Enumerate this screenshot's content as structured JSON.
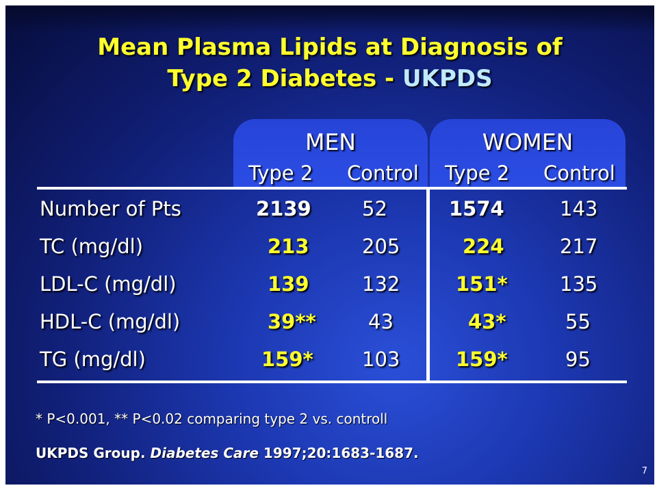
{
  "title": {
    "line1": "Mean Plasma Lipids at Diagnosis of",
    "line2_prefix": "Type 2 Diabetes - ",
    "line2_accent": "UKPDS"
  },
  "colors": {
    "yellow": "#ffff2e",
    "accent": "#bfeaff",
    "tab": "#2b4de4"
  },
  "groups": {
    "men": {
      "label": "MEN",
      "col1": "Type 2",
      "col2": "Control"
    },
    "women": {
      "label": "WOMEN",
      "col1": "Type 2",
      "col2": "Control"
    }
  },
  "rows": [
    {
      "label": "Number of Pts",
      "men_t2": "2139",
      "men_ctl": "52",
      "women_t2": "1574",
      "women_ctl": "143"
    },
    {
      "label": "TC (mg/dl)",
      "men_t2": "213",
      "men_ctl": "205",
      "women_t2": "224",
      "women_ctl": "217"
    },
    {
      "label": "LDL-C (mg/dl)",
      "men_t2": "139",
      "men_ctl": "132",
      "women_t2": "151*",
      "women_ctl": "135"
    },
    {
      "label": "HDL-C (mg/dl)",
      "men_t2": "39**",
      "men_ctl": "43",
      "women_t2": "43*",
      "women_ctl": "55"
    },
    {
      "label": "TG (mg/dl)",
      "men_t2": "159*",
      "men_ctl": "103",
      "women_t2": "159*",
      "women_ctl": "95"
    }
  ],
  "footnote": "* P<0.001, ** P<0.02 comparing type 2 vs. controll",
  "citation": {
    "authors": "UKPDS Group.",
    "journal": "Diabetes Care",
    "ref": "1997;20:1683-1687."
  },
  "slide_number": "7"
}
